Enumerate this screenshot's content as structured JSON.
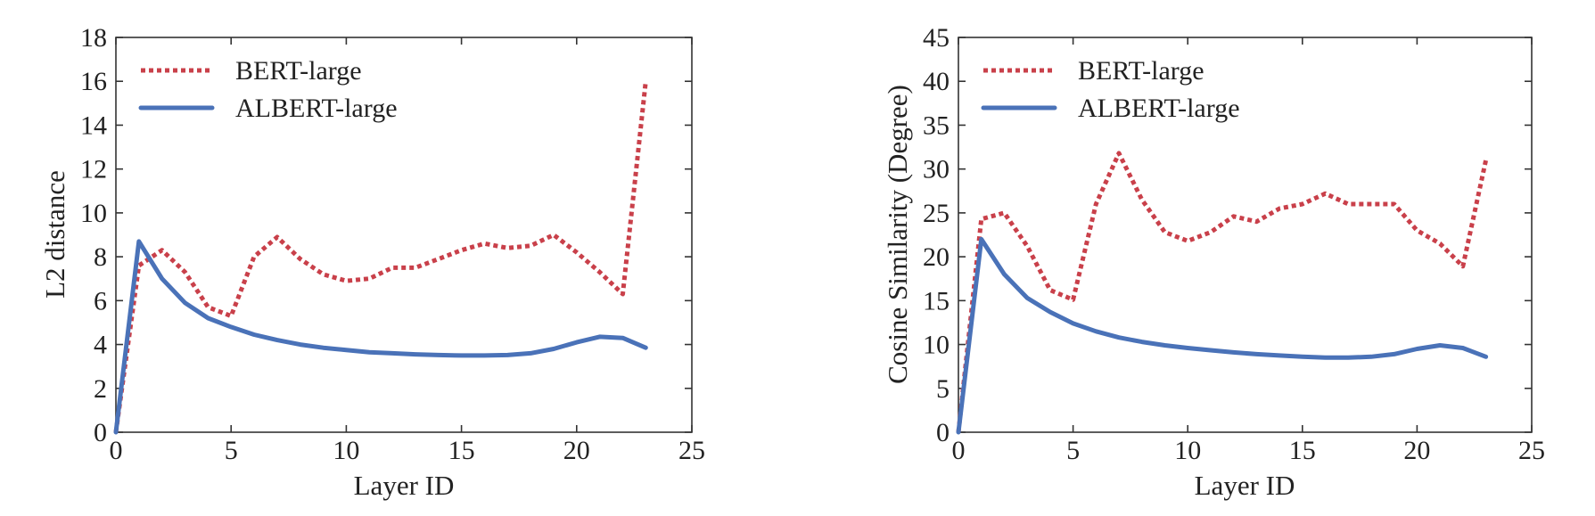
{
  "colors": {
    "bert": "#c9404a",
    "albert": "#4a72b8"
  },
  "chart_data": [
    {
      "type": "line",
      "xlabel": "Layer ID",
      "ylabel": "L2 distance",
      "xlim": [
        0,
        25
      ],
      "ylim": [
        0,
        18
      ],
      "xticks": [
        "0",
        "5",
        "10",
        "15",
        "20",
        "25"
      ],
      "yticks": [
        "0",
        "2",
        "4",
        "6",
        "8",
        "10",
        "12",
        "14",
        "16",
        "18"
      ],
      "legend_position": "top-left",
      "grid": false,
      "series": [
        {
          "name": "BERT-large",
          "style": "dotted",
          "x": [
            0,
            1,
            2,
            3,
            4,
            5,
            6,
            7,
            8,
            9,
            10,
            11,
            12,
            13,
            14,
            15,
            16,
            17,
            18,
            19,
            20,
            21,
            22,
            23
          ],
          "values": [
            0,
            7.6,
            8.3,
            7.3,
            5.7,
            5.3,
            8.0,
            8.9,
            7.9,
            7.2,
            6.9,
            7.0,
            7.5,
            7.5,
            7.9,
            8.3,
            8.6,
            8.4,
            8.5,
            9.0,
            8.2,
            7.3,
            6.3,
            16.0
          ]
        },
        {
          "name": "ALBERT-large",
          "style": "solid",
          "x": [
            0,
            1,
            2,
            3,
            4,
            5,
            6,
            7,
            8,
            9,
            10,
            11,
            12,
            13,
            14,
            15,
            16,
            17,
            18,
            19,
            20,
            21,
            22,
            23
          ],
          "values": [
            0,
            8.7,
            7.0,
            5.9,
            5.2,
            4.8,
            4.45,
            4.2,
            4.0,
            3.85,
            3.75,
            3.65,
            3.6,
            3.55,
            3.52,
            3.5,
            3.5,
            3.52,
            3.6,
            3.8,
            4.1,
            4.35,
            4.3,
            3.85
          ]
        }
      ]
    },
    {
      "type": "line",
      "xlabel": "Layer ID",
      "ylabel": "Cosine Similarity (Degree)",
      "xlim": [
        0,
        25
      ],
      "ylim": [
        0,
        45
      ],
      "xticks": [
        "0",
        "5",
        "10",
        "15",
        "20",
        "25"
      ],
      "yticks": [
        "0",
        "5",
        "10",
        "15",
        "20",
        "25",
        "30",
        "35",
        "40",
        "45"
      ],
      "legend_position": "top-left",
      "grid": false,
      "series": [
        {
          "name": "BERT-large",
          "style": "dotted",
          "x": [
            0,
            1,
            2,
            3,
            4,
            5,
            6,
            7,
            8,
            9,
            10,
            11,
            12,
            13,
            14,
            15,
            16,
            17,
            18,
            19,
            20,
            21,
            22,
            23
          ],
          "values": [
            0,
            24.3,
            25.0,
            21.2,
            16.2,
            15.1,
            26.0,
            31.8,
            26.5,
            22.8,
            21.8,
            22.8,
            24.6,
            24.0,
            25.5,
            26.0,
            27.2,
            26.0,
            26.0,
            26.0,
            23.0,
            21.5,
            18.9,
            31.0
          ]
        },
        {
          "name": "ALBERT-large",
          "style": "solid",
          "x": [
            0,
            1,
            2,
            3,
            4,
            5,
            6,
            7,
            8,
            9,
            10,
            11,
            12,
            13,
            14,
            15,
            16,
            17,
            18,
            19,
            20,
            21,
            22,
            23
          ],
          "values": [
            0,
            22.0,
            18.0,
            15.3,
            13.7,
            12.4,
            11.5,
            10.8,
            10.3,
            9.9,
            9.6,
            9.35,
            9.1,
            8.9,
            8.75,
            8.6,
            8.5,
            8.5,
            8.6,
            8.9,
            9.5,
            9.9,
            9.6,
            8.6
          ]
        }
      ]
    }
  ]
}
